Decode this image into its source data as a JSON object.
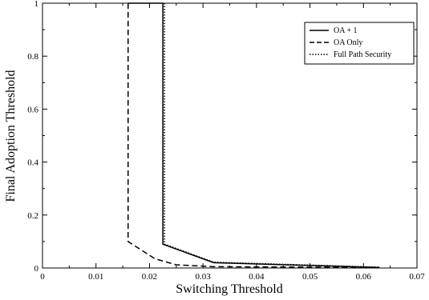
{
  "chart_data": {
    "type": "line",
    "title": "",
    "xlabel": "Switching Threshold",
    "ylabel": "Final Adoption Threshold",
    "xlim": [
      0,
      0.07
    ],
    "ylim": [
      0,
      1
    ],
    "grid": false,
    "legend_position": "top-right",
    "x_ticks": [
      "0",
      "0.01",
      "0.02",
      "0.03",
      "0.04",
      "0.05",
      "0.06",
      "0.07"
    ],
    "y_ticks": [
      "0",
      "0.2",
      "0.4",
      "0.6",
      "0.8",
      "1"
    ],
    "series": [
      {
        "name": "OA + 1",
        "style": "solid",
        "points": [
          [
            0.016,
            1.0
          ],
          [
            0.0225,
            1.0
          ],
          [
            0.0225,
            0.09
          ],
          [
            0.032,
            0.02
          ],
          [
            0.063,
            0.002
          ]
        ]
      },
      {
        "name": "OA Only",
        "style": "dashed",
        "points": [
          [
            0.016,
            1.0
          ],
          [
            0.016,
            0.1
          ],
          [
            0.021,
            0.035
          ],
          [
            0.025,
            0.012
          ],
          [
            0.032,
            0.005
          ],
          [
            0.063,
            0.002
          ]
        ]
      },
      {
        "name": "Full Path Security",
        "style": "dotted",
        "points": [
          [
            0.0228,
            1.0
          ],
          [
            0.0228,
            0.09
          ],
          [
            0.032,
            0.022
          ],
          [
            0.063,
            0.003
          ]
        ]
      }
    ]
  }
}
